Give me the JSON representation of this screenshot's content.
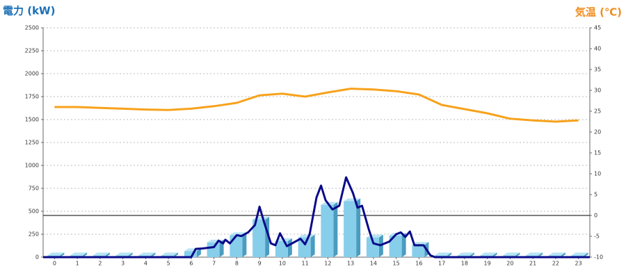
{
  "chart_data": {
    "type": "combo",
    "y_label": "電力 (kW)",
    "y2_label": "気温 (℃)",
    "categories": [
      0,
      1,
      2,
      3,
      4,
      5,
      6,
      7,
      8,
      9,
      10,
      11,
      12,
      13,
      14,
      15,
      16,
      17,
      18,
      19,
      20,
      21,
      22,
      23
    ],
    "ylim": [
      0,
      2500
    ],
    "yticks": [
      0,
      250,
      500,
      750,
      1000,
      1250,
      1500,
      1750,
      2000,
      2250,
      2500
    ],
    "y2lim": [
      -10,
      45
    ],
    "y2ticks": [
      -10,
      -5,
      0,
      5,
      10,
      15,
      20,
      25,
      30,
      35,
      40,
      45
    ],
    "grid": true,
    "series": [
      {
        "type": "bar",
        "color": "#87ceeb",
        "values": [
          20,
          20,
          20,
          20,
          20,
          20,
          65,
          160,
          240,
          410,
          175,
          215,
          570,
          610,
          215,
          235,
          135,
          20,
          20,
          20,
          20,
          20,
          20,
          20
        ]
      },
      {
        "type": "line",
        "color": "#0a0a8a",
        "x": [
          -0.5,
          0,
          1,
          2,
          3,
          4,
          5,
          6,
          6.2,
          6.5,
          7,
          7.2,
          7.4,
          7.5,
          7.7,
          8,
          8.2,
          8.5,
          8.8,
          9,
          9.2,
          9.5,
          9.7,
          9.9,
          10.2,
          10.5,
          10.8,
          11,
          11.2,
          11.5,
          11.7,
          11.9,
          12.2,
          12.5,
          12.8,
          13.1,
          13.3,
          13.5,
          13.8,
          14,
          14.3,
          14.7,
          15,
          15.2,
          15.4,
          15.6,
          15.8,
          16,
          16.2,
          16.5,
          16.7,
          17,
          18,
          19,
          20,
          21,
          22,
          23,
          23.5
        ],
        "values": [
          0,
          0,
          0,
          0,
          0,
          0,
          0,
          0,
          90,
          95,
          110,
          180,
          150,
          190,
          150,
          240,
          230,
          270,
          350,
          550,
          380,
          150,
          130,
          260,
          120,
          160,
          200,
          140,
          250,
          650,
          780,
          620,
          520,
          560,
          870,
          700,
          540,
          560,
          300,
          150,
          130,
          170,
          250,
          270,
          220,
          280,
          130,
          130,
          130,
          20,
          0,
          0,
          0,
          0,
          0,
          0,
          0,
          0,
          0
        ]
      },
      {
        "type": "line",
        "color": "#f7a21b",
        "axis": "y2",
        "values": [
          26,
          26,
          25.8,
          25.6,
          25.4,
          25.3,
          25.6,
          26.2,
          27,
          28.8,
          29.2,
          28.5,
          29.5,
          30.4,
          30.2,
          29.8,
          29,
          26.5,
          25.5,
          24.5,
          23.2,
          22.8,
          22.5,
          22.8
        ]
      }
    ]
  }
}
